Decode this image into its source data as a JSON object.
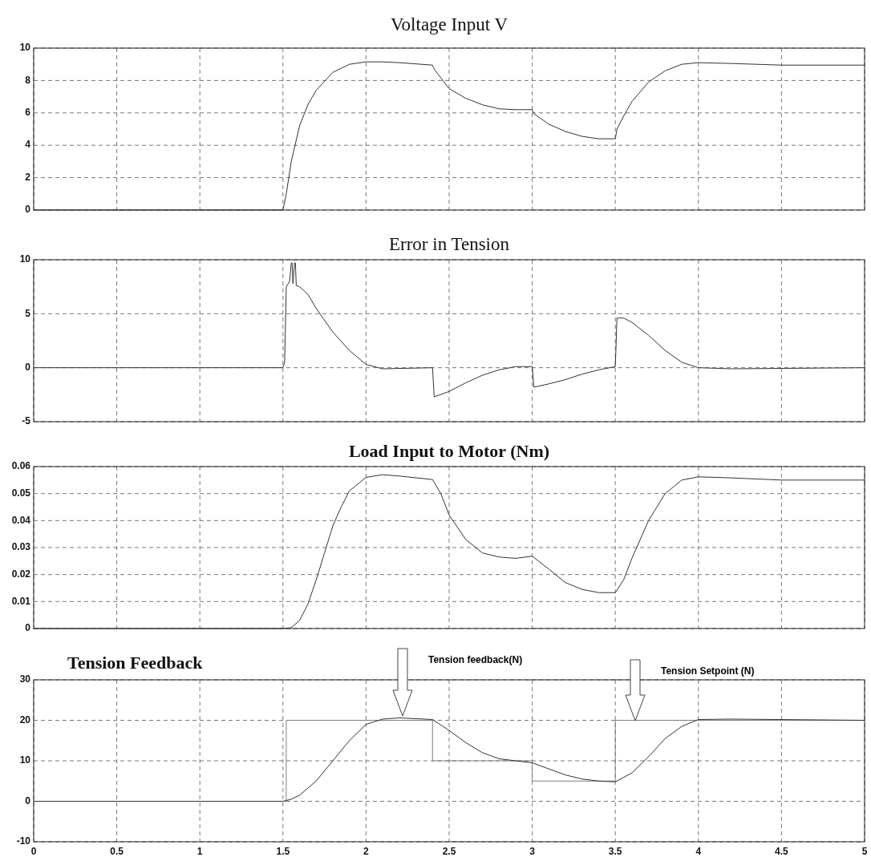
{
  "chart_data": [
    {
      "type": "line",
      "title": "Voltage Input V",
      "xlim": [
        0,
        5
      ],
      "xticks": [
        0,
        0.5,
        1,
        1.5,
        2,
        2.5,
        3,
        3.5,
        4,
        4.5,
        5
      ],
      "ylim": [
        0,
        10
      ],
      "yticks": [
        0,
        2,
        4,
        6,
        8,
        10
      ],
      "grid": true,
      "tick_labels": "y",
      "color": "#333333",
      "x": [
        0,
        1.5,
        1.52,
        1.55,
        1.6,
        1.65,
        1.7,
        1.8,
        1.9,
        2.0,
        2.1,
        2.2,
        2.4,
        2.41,
        2.5,
        2.6,
        2.7,
        2.8,
        2.9,
        3.0,
        3.01,
        3.1,
        3.2,
        3.3,
        3.4,
        3.5,
        3.51,
        3.55,
        3.6,
        3.7,
        3.8,
        3.9,
        4.0,
        4.2,
        4.5,
        5
      ],
      "values": [
        0,
        0,
        1,
        3,
        5.2,
        6.5,
        7.4,
        8.5,
        9.0,
        9.15,
        9.15,
        9.1,
        8.95,
        8.7,
        7.5,
        6.9,
        6.5,
        6.25,
        6.2,
        6.2,
        5.95,
        5.3,
        4.85,
        4.55,
        4.4,
        4.4,
        5.0,
        5.8,
        6.7,
        7.9,
        8.6,
        9.0,
        9.1,
        9.05,
        8.95,
        8.95
      ]
    },
    {
      "type": "line",
      "title": "Error in Tension",
      "xlim": [
        0,
        5
      ],
      "xticks": [
        0,
        0.5,
        1,
        1.5,
        2,
        2.5,
        3,
        3.5,
        4,
        4.5,
        5
      ],
      "ylim": [
        -5,
        10
      ],
      "yticks": [
        -5,
        0,
        5,
        10
      ],
      "grid": true,
      "tick_labels": "y",
      "color": "#333333",
      "x": [
        0,
        1.5,
        1.51,
        1.52,
        1.54,
        1.55,
        1.555,
        1.56,
        1.57,
        1.575,
        1.58,
        1.6,
        1.65,
        1.7,
        1.8,
        1.9,
        2.0,
        2.1,
        2.4,
        2.41,
        2.5,
        2.6,
        2.7,
        2.8,
        2.9,
        3.0,
        3.01,
        3.1,
        3.2,
        3.3,
        3.4,
        3.5,
        3.51,
        3.55,
        3.6,
        3.7,
        3.8,
        3.9,
        4.0,
        4.2,
        5
      ],
      "values": [
        0,
        0,
        0.5,
        7.5,
        8,
        9.7,
        9.7,
        7.8,
        9.7,
        9.7,
        7.6,
        7.5,
        6.8,
        5.5,
        3.3,
        1.6,
        0.3,
        -0.1,
        0,
        -2.7,
        -2.2,
        -1.4,
        -0.7,
        -0.2,
        0.1,
        0.1,
        -1.8,
        -1.5,
        -1.1,
        -0.6,
        -0.2,
        0.1,
        4.6,
        4.6,
        4.2,
        3.0,
        1.6,
        0.5,
        0,
        -0.1,
        0
      ]
    },
    {
      "type": "line",
      "title": "Load Input to Motor (Nm)",
      "xlim": [
        0,
        5
      ],
      "xticks": [
        0,
        0.5,
        1,
        1.5,
        2,
        2.5,
        3,
        3.5,
        4,
        4.5,
        5
      ],
      "ylim": [
        0,
        0.06
      ],
      "yticks": [
        0,
        0.01,
        0.02,
        0.03,
        0.04,
        0.05,
        0.06
      ],
      "grid": true,
      "tick_labels": "y",
      "color": "#333333",
      "x": [
        0,
        1.5,
        1.55,
        1.6,
        1.65,
        1.7,
        1.75,
        1.8,
        1.85,
        1.9,
        2.0,
        2.1,
        2.2,
        2.4,
        2.45,
        2.5,
        2.6,
        2.7,
        2.8,
        2.9,
        3.0,
        3.1,
        3.2,
        3.3,
        3.4,
        3.5,
        3.55,
        3.6,
        3.7,
        3.8,
        3.9,
        4.0,
        4.2,
        4.5,
        5
      ],
      "values": [
        0,
        0,
        0.0003,
        0.003,
        0.009,
        0.018,
        0.028,
        0.038,
        0.045,
        0.051,
        0.056,
        0.057,
        0.0565,
        0.0552,
        0.05,
        0.042,
        0.033,
        0.028,
        0.0265,
        0.026,
        0.0268,
        0.022,
        0.017,
        0.0145,
        0.0133,
        0.0133,
        0.018,
        0.026,
        0.04,
        0.05,
        0.055,
        0.0562,
        0.0558,
        0.055,
        0.055
      ]
    },
    {
      "type": "line",
      "title": "Tension Feedback",
      "xlim": [
        0,
        5
      ],
      "xticks": [
        0,
        0.5,
        1,
        1.5,
        2,
        2.5,
        3,
        3.5,
        4,
        4.5,
        5
      ],
      "ylim": [
        -10,
        30
      ],
      "yticks": [
        -10,
        0,
        10,
        20,
        30
      ],
      "grid": true,
      "annotations": [
        "Tension feedback(N)",
        "Tension Setpoint (N)"
      ],
      "series": [
        {
          "type": "step",
          "color": "#7f7f7f",
          "x": [
            0,
            1.52,
            2.4,
            3.0,
            3.5,
            5
          ],
          "values": [
            0,
            20,
            10,
            5,
            20,
            20
          ]
        },
        {
          "type": "line",
          "color": "#333333",
          "x": [
            0,
            1.5,
            1.55,
            1.6,
            1.7,
            1.8,
            1.9,
            2.0,
            2.1,
            2.2,
            2.4,
            2.5,
            2.6,
            2.7,
            2.8,
            2.9,
            3.0,
            3.1,
            3.2,
            3.3,
            3.4,
            3.5,
            3.6,
            3.7,
            3.8,
            3.9,
            4.0,
            4.2,
            5
          ],
          "values": [
            0,
            0,
            0.5,
            1.5,
            5,
            10,
            15,
            19,
            20.3,
            20.6,
            20.2,
            17.5,
            14.5,
            12,
            10.5,
            10,
            9.5,
            8,
            6.5,
            5.5,
            5,
            4.8,
            7,
            11,
            15.5,
            18.5,
            20.2,
            20.3,
            20
          ]
        }
      ]
    }
  ]
}
